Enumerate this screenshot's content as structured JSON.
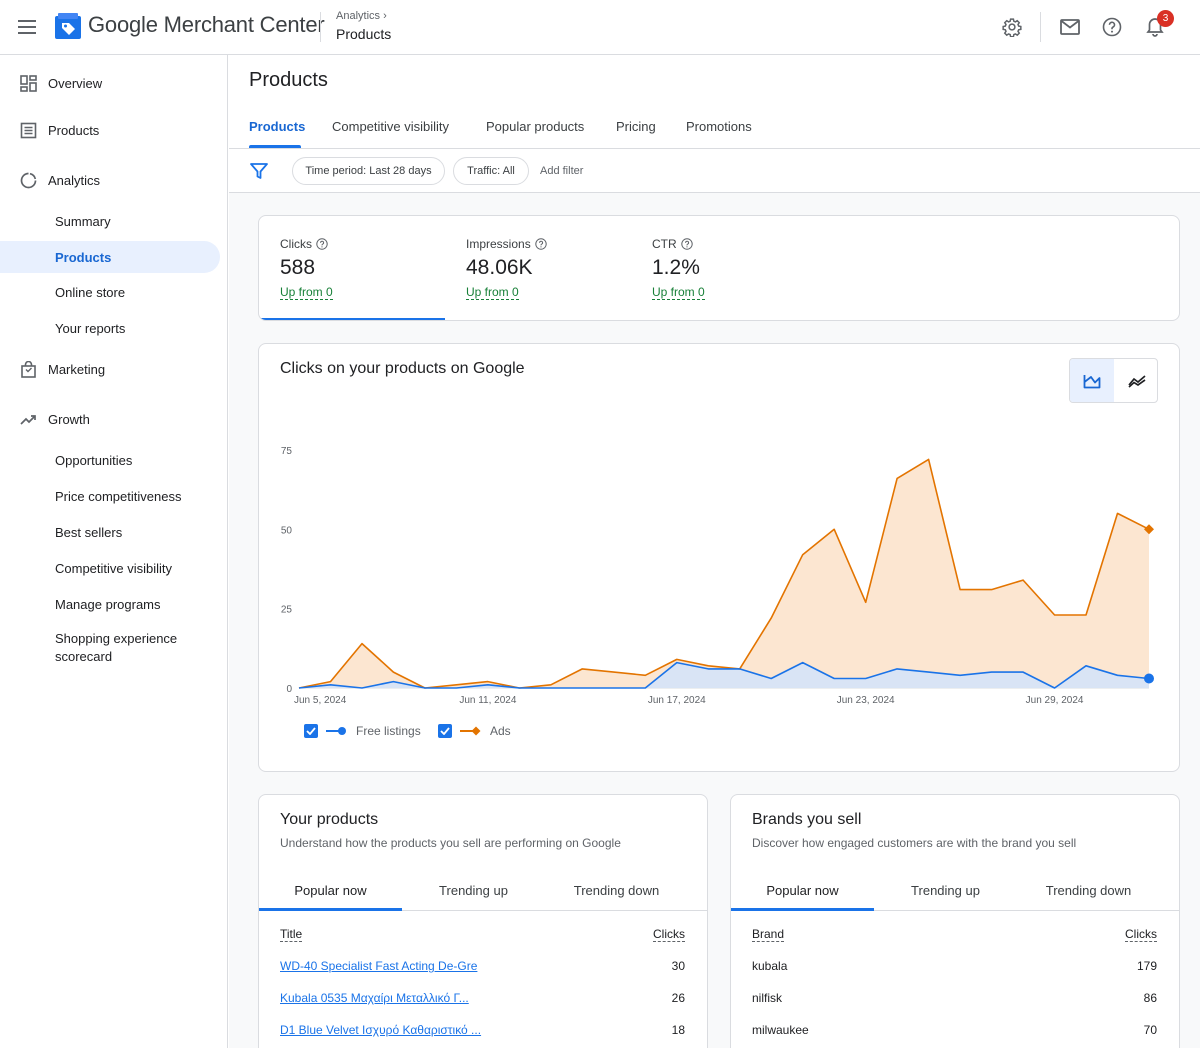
{
  "app": {
    "name": "Google Merchant Center"
  },
  "breadcrumb": {
    "parent": "Analytics",
    "current": "Products"
  },
  "header": {
    "notifications_count": "3"
  },
  "sidebar": {
    "overview": "Overview",
    "products": "Products",
    "analytics": "Analytics",
    "analytics_items": [
      "Summary",
      "Products",
      "Online store",
      "Your reports"
    ],
    "marketing": "Marketing",
    "growth": "Growth",
    "growth_items": [
      "Opportunities",
      "Price competitiveness",
      "Best sellers",
      "Competitive visibility",
      "Manage programs",
      "Shopping experience scorecard"
    ]
  },
  "page": {
    "title": "Products",
    "tabs": [
      "Products",
      "Competitive visibility",
      "Popular products",
      "Pricing",
      "Promotions"
    ],
    "active_tab": "Products"
  },
  "filters": {
    "time_period": "Time period: Last 28 days",
    "traffic": "Traffic: All",
    "add": "Add filter"
  },
  "metrics": [
    {
      "label": "Clicks",
      "value": "588",
      "delta": "Up from 0"
    },
    {
      "label": "Impressions",
      "value": "48.06K",
      "delta": "Up from 0"
    },
    {
      "label": "CTR",
      "value": "1.2%",
      "delta": "Up from 0"
    }
  ],
  "chart": {
    "title": "Clicks on your products on Google"
  },
  "chart_data": {
    "type": "area",
    "title": "Clicks on your products on Google",
    "x_tick_labels": [
      "Jun 5, 2024",
      "Jun 11, 2024",
      "Jun 17, 2024",
      "Jun 23, 2024",
      "Jun 29, 2024"
    ],
    "y_ticks": [
      0,
      25,
      50,
      75
    ],
    "ylim": [
      0,
      80
    ],
    "x": [
      "Jun 5",
      "Jun 6",
      "Jun 7",
      "Jun 8",
      "Jun 9",
      "Jun 10",
      "Jun 11",
      "Jun 12",
      "Jun 13",
      "Jun 14",
      "Jun 15",
      "Jun 16",
      "Jun 17",
      "Jun 18",
      "Jun 19",
      "Jun 20",
      "Jun 21",
      "Jun 22",
      "Jun 23",
      "Jun 24",
      "Jun 25",
      "Jun 26",
      "Jun 27",
      "Jun 28",
      "Jun 29",
      "Jun 30",
      "Jul 1",
      "Jul 2"
    ],
    "series": [
      {
        "name": "Free listings",
        "color": "#1a73e8",
        "values": [
          0,
          1,
          0,
          2,
          0,
          0,
          1,
          0,
          0,
          0,
          0,
          0,
          8,
          6,
          6,
          3,
          8,
          3,
          3,
          6,
          5,
          4,
          5,
          5,
          0,
          7,
          4,
          3
        ]
      },
      {
        "name": "Ads",
        "color": "#e37400",
        "values": [
          0,
          2,
          14,
          5,
          0,
          1,
          2,
          0,
          1,
          6,
          5,
          4,
          9,
          7,
          6,
          22,
          42,
          50,
          27,
          66,
          72,
          31,
          31,
          34,
          23,
          23,
          55,
          50
        ]
      }
    ],
    "legend": "bottom"
  },
  "your_products": {
    "title": "Your products",
    "desc": "Understand how the products you sell are performing on Google",
    "tabs": [
      "Popular now",
      "Trending up",
      "Trending down"
    ],
    "col_title": "Title",
    "col_clicks": "Clicks",
    "rows": [
      {
        "title": "WD-40 Specialist Fast Acting De-Gre",
        "clicks": "30"
      },
      {
        "title": "Kubala 0535 Μαχαίρι Μεταλλικό Γ...",
        "clicks": "26"
      },
      {
        "title": "D1 Blue Velvet Ισχυρό Καθαριστικό ...",
        "clicks": "18"
      }
    ]
  },
  "brands": {
    "title": "Brands you sell",
    "desc": "Discover how engaged customers are with the brand you sell",
    "tabs": [
      "Popular now",
      "Trending up",
      "Trending down"
    ],
    "col_brand": "Brand",
    "col_clicks": "Clicks",
    "rows": [
      {
        "brand": "kubala",
        "clicks": "179"
      },
      {
        "brand": "nilfisk",
        "clicks": "86"
      },
      {
        "brand": "milwaukee",
        "clicks": "70"
      }
    ]
  }
}
